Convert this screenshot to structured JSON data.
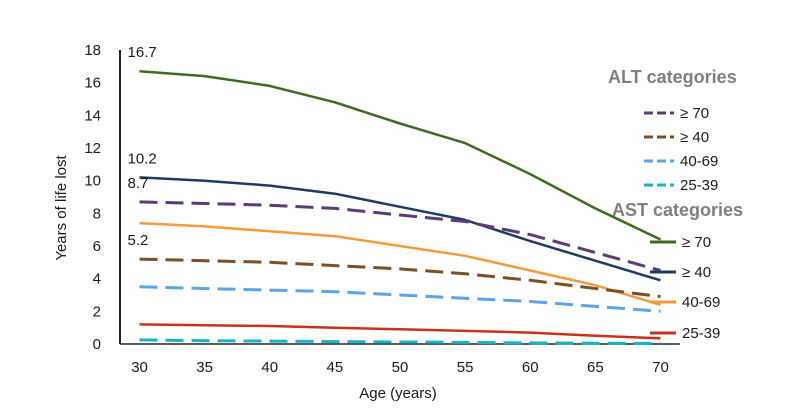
{
  "chart_data": {
    "type": "line",
    "xlabel": "Age (years)",
    "ylabel": "Years of life lost",
    "x": [
      30,
      35,
      40,
      45,
      50,
      55,
      60,
      65,
      70
    ],
    "xlim": [
      28.5,
      71.5
    ],
    "ylim": [
      0,
      18
    ],
    "x_ticks": [
      "30",
      "35",
      "40",
      "45",
      "50",
      "55",
      "60",
      "65",
      "70"
    ],
    "y_ticks": [
      "0",
      "2",
      "4",
      "6",
      "8",
      "10",
      "12",
      "14",
      "16",
      "18"
    ],
    "grid": false,
    "legend_groups": [
      {
        "title": "ALT categories",
        "entries": [
          "≥ 70",
          "≥ 40",
          "40-69",
          "25-39"
        ]
      },
      {
        "title": "AST categories",
        "entries": [
          "≥ 70",
          "≥ 40",
          "40-69",
          "25-39"
        ]
      }
    ],
    "series": [
      {
        "name": "AST ≥ 70",
        "group": "AST",
        "dashed": false,
        "color": "#3e6b22",
        "values": [
          16.7,
          16.4,
          15.8,
          14.8,
          13.5,
          12.3,
          10.4,
          8.3,
          6.4
        ]
      },
      {
        "name": "AST ≥ 40",
        "group": "AST",
        "dashed": false,
        "color": "#1f3b63",
        "values": [
          10.2,
          10.0,
          9.7,
          9.2,
          8.4,
          7.6,
          6.3,
          5.1,
          3.9
        ]
      },
      {
        "name": "ALT ≥ 70",
        "group": "ALT",
        "dashed": true,
        "color": "#5b3c78",
        "values": [
          8.7,
          8.6,
          8.5,
          8.3,
          7.9,
          7.5,
          6.7,
          5.6,
          4.5
        ]
      },
      {
        "name": "AST 40-69",
        "group": "AST",
        "dashed": false,
        "color": "#f39a3f",
        "values": [
          7.4,
          7.2,
          6.9,
          6.6,
          6.0,
          5.4,
          4.5,
          3.6,
          2.4
        ]
      },
      {
        "name": "ALT ≥ 40",
        "group": "ALT",
        "dashed": true,
        "color": "#7a5127",
        "values": [
          5.2,
          5.1,
          5.0,
          4.8,
          4.6,
          4.3,
          3.9,
          3.4,
          2.9
        ]
      },
      {
        "name": "ALT 40-69",
        "group": "ALT",
        "dashed": true,
        "color": "#5ba4ea",
        "values": [
          3.5,
          3.4,
          3.3,
          3.2,
          3.0,
          2.8,
          2.6,
          2.3,
          2.0
        ]
      },
      {
        "name": "AST 25-39",
        "group": "AST",
        "dashed": false,
        "color": "#c8321d",
        "values": [
          1.2,
          1.15,
          1.1,
          1.0,
          0.9,
          0.8,
          0.7,
          0.5,
          0.35
        ]
      },
      {
        "name": "ALT 25-39",
        "group": "ALT",
        "dashed": true,
        "color": "#1ab3c6",
        "values": [
          0.25,
          0.2,
          0.18,
          0.15,
          0.12,
          0.1,
          0.07,
          0.05,
          0.03
        ]
      }
    ],
    "annotations": [
      {
        "text": "16.7",
        "series": "AST ≥ 70"
      },
      {
        "text": "10.2",
        "series": "AST ≥ 40"
      },
      {
        "text": "8.7",
        "series": "ALT ≥ 70"
      },
      {
        "text": "5.2",
        "series": "ALT ≥ 40"
      }
    ]
  }
}
